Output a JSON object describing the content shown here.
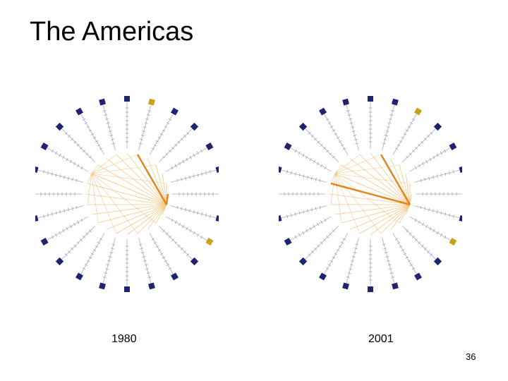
{
  "slide": {
    "title": "The Americas",
    "page_number": "36"
  },
  "colors": {
    "node_default": "#1f2370",
    "node_highlight": "#c9a21a",
    "link_light": "#f2c98a",
    "link_heavy": "#e0871e",
    "spoke": "#b8bccb"
  },
  "diagrams": [
    {
      "year_label": "1980",
      "node_count": 24,
      "highlighted_nodes": [
        0,
        7
      ],
      "heavy_links": [
        [
          0,
          6
        ],
        [
          6,
          5
        ]
      ],
      "hub_node": 6
    },
    {
      "year_label": "2001",
      "node_count": 24,
      "highlighted_nodes": [
        1,
        7
      ],
      "heavy_links": [
        [
          0,
          6
        ],
        [
          6,
          18
        ]
      ],
      "hub_node": 6
    }
  ]
}
